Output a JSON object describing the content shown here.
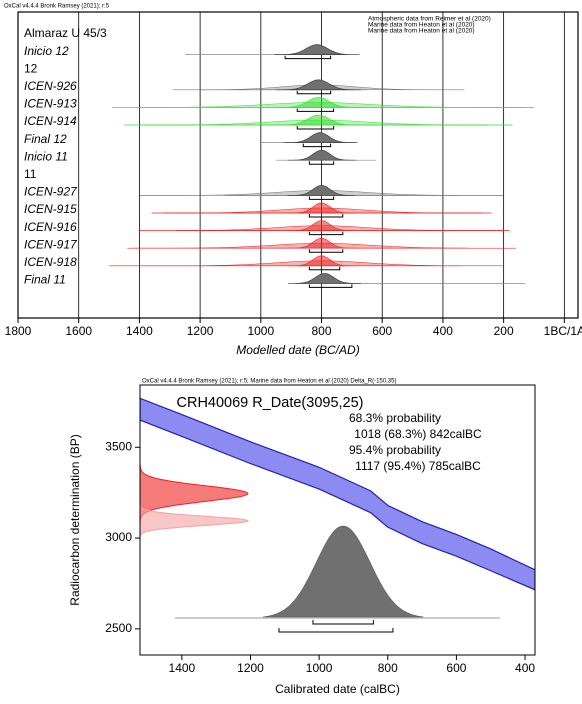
{
  "chart_data": [
    {
      "type": "multiplot",
      "header": "OxCal v4.4.4 Bronk Ramsey (2021); r:5",
      "legend": [
        {
          "text": "Atmospheric data from Reimer et al (2020)",
          "color": "#000000"
        },
        {
          "text": "Marine data from Heaton et al (2020)",
          "color": "#33dd33"
        },
        {
          "text": "Marine data from Heaton et al (2020)",
          "color": "#ee2222"
        }
      ],
      "xlabel": "Modelled date (BC/AD)",
      "xlim": [
        1800,
        -45
      ],
      "xticks": [
        1800,
        1600,
        1400,
        1200,
        1000,
        800,
        600,
        400,
        200,
        {
          "value": 0,
          "label": "1BC/1A"
        }
      ],
      "grid": true,
      "rows": [
        {
          "name": "Almaraz U 45/3"
        },
        {
          "name": "Inicio 12",
          "color": "#707070",
          "peak": 815,
          "sigma": 35,
          "span": [
            1250,
            740
          ],
          "range": [
            920,
            770
          ]
        },
        {
          "name": "12"
        },
        {
          "name": "ICEN-926",
          "color": "#707070",
          "peak": 810,
          "sigma": 35,
          "prior_sigma": 120,
          "span": [
            1200,
            650
          ],
          "range": [
            880,
            770
          ]
        },
        {
          "name": "ICEN-913",
          "color": "#33dd33",
          "peak": 810,
          "sigma": 35,
          "prior_sigma": 170,
          "span": [
            1400,
            100
          ],
          "range": [
            880,
            760
          ]
        },
        {
          "name": "ICEN-914",
          "color": "#33dd33",
          "peak": 810,
          "sigma": 35,
          "prior_sigma": 160,
          "span": [
            1400,
            250
          ],
          "range": [
            880,
            760
          ]
        },
        {
          "name": "Final 12",
          "color": "#707070",
          "peak": 805,
          "sigma": 30,
          "span": [
            1000,
            680
          ],
          "range": [
            860,
            770
          ]
        },
        {
          "name": "Inicio 11",
          "color": "#707070",
          "peak": 800,
          "sigma": 28,
          "span": [
            950,
            620
          ],
          "range": [
            840,
            760
          ]
        },
        {
          "name": "11"
        },
        {
          "name": "ICEN-927",
          "color": "#707070",
          "peak": 800,
          "sigma": 28,
          "prior_sigma": 150,
          "span": [
            1120,
            350
          ],
          "range": [
            840,
            760
          ]
        },
        {
          "name": "ICEN-915",
          "color": "#ee2222",
          "peak": 800,
          "sigma": 28,
          "prior_sigma": 140,
          "span": [
            1320,
            270
          ],
          "range": [
            840,
            730
          ]
        },
        {
          "name": "ICEN-916",
          "color": "#ee2222",
          "peak": 800,
          "sigma": 28,
          "prior_sigma": 150,
          "span": [
            1280,
            180
          ],
          "range": [
            840,
            730
          ]
        },
        {
          "name": "ICEN-917",
          "color": "#ee2222",
          "peak": 800,
          "sigma": 28,
          "prior_sigma": 160,
          "span": [
            1420,
            320
          ],
          "range": [
            840,
            730
          ]
        },
        {
          "name": "ICEN-918",
          "color": "#ee2222",
          "peak": 800,
          "sigma": 28,
          "prior_sigma": 150,
          "span": [
            1500,
            340
          ],
          "range": [
            840,
            740
          ]
        },
        {
          "name": "Final 11",
          "color": "#707070",
          "peak": 790,
          "sigma": 30,
          "span": [
            880,
            130
          ],
          "range": [
            840,
            700
          ]
        }
      ]
    },
    {
      "type": "calibration",
      "header": "OxCal v4.4.4 Bronk Ramsey (2021); r:5; Marine data from Heaton et al (2020) Delta_R(-150,35)",
      "title": "CRH40069 R_Date(3095,25)",
      "probabilities": [
        {
          "heading": "68.3% probability",
          "text": "1018 (68.3%) 842calBC",
          "from": 1018,
          "to": 842
        },
        {
          "heading": "95.4% probability",
          "text": "1117 (95.4%) 785calBC",
          "from": 1117,
          "to": 785
        }
      ],
      "xlabel": "Calibrated date (calBC)",
      "ylabel": "Radiocarbon determination (BP)",
      "xlim": [
        1522,
        371
      ],
      "ylim": [
        2356,
        3843
      ],
      "xticks": [
        1400,
        1200,
        1000,
        800,
        600,
        400
      ],
      "yticks": [
        2500,
        3000,
        3500
      ],
      "curve_color": "#7777ee",
      "curve_x": [
        1522,
        1400,
        1200,
        1000,
        850,
        800,
        700,
        600,
        500,
        371
      ],
      "curve_y": [
        3710,
        3620,
        3470,
        3330,
        3200,
        3120,
        3030,
        2960,
        2880,
        2770
      ],
      "curve_error": [
        60,
        60,
        60,
        60,
        60,
        60,
        60,
        60,
        60,
        55
      ],
      "radiocarbon": [
        {
          "mean": 3245,
          "sigma": 43,
          "color": "#ee2222"
        },
        {
          "mean": 3095,
          "sigma": 25,
          "color": "#f4a0a0"
        }
      ],
      "posterior_color": "#707070",
      "posterior_peak": 930,
      "posterior_sigma": 78
    }
  ]
}
